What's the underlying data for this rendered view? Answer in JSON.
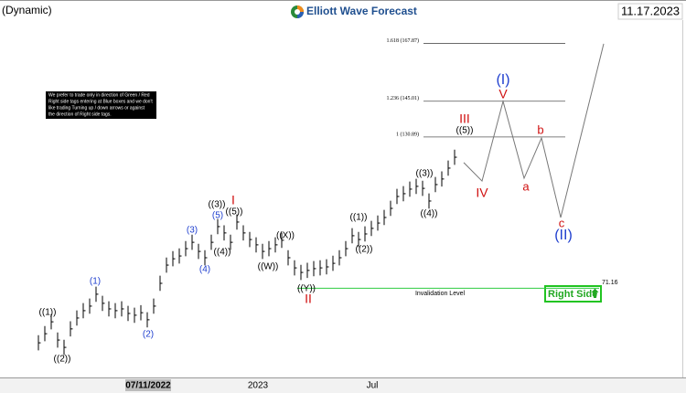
{
  "header": {
    "left": "(Dynamic)",
    "brand": "Elliott Wave Forecast",
    "date": "11.17.2023"
  },
  "note": [
    "We prefer to trade only in direction of Green / Red",
    "Right side tags entering at Blue boxes and we don't",
    "like trading Turning up / down arrows or against",
    "the direction of Right side tags."
  ],
  "right_side": "Right Side",
  "chart_data": {
    "type": "ohlc",
    "ylim": [
      37,
      185
    ],
    "x_labels": [
      "07/11/2022",
      "2023",
      "Jul"
    ],
    "bar_color": "#000000",
    "close": [
      49.6,
      53.2,
      57.9,
      50.7,
      47.8,
      55.1,
      59.4,
      62.3,
      64.1,
      68.8,
      65.2,
      63.0,
      62.3,
      63.0,
      61.2,
      60.5,
      61.5,
      58.7,
      64.1,
      73.1,
      80.3,
      82.8,
      83.9,
      86.8,
      89.3,
      85.7,
      83.2,
      89.3,
      95.5,
      93.0,
      89.3,
      97.3,
      93.0,
      90.4,
      88.3,
      85.7,
      86.8,
      88.3,
      90.1,
      83.2,
      79.2,
      77.4,
      78.2,
      78.9,
      79.2,
      79.6,
      81.0,
      83.2,
      86.8,
      91.9,
      90.4,
      92.6,
      94.8,
      96.9,
      99.1,
      102.7,
      107.4,
      108.5,
      110.3,
      111.4,
      110.6,
      105.6,
      112.1,
      114.3,
      118.6,
      122.9
    ],
    "high": [
      52.6,
      56.2,
      60.9,
      53.7,
      50.8,
      58.1,
      62.4,
      65.3,
      67.1,
      71.8,
      68.2,
      66.0,
      65.3,
      66.0,
      64.2,
      63.5,
      64.5,
      61.7,
      67.1,
      76.1,
      83.3,
      85.8,
      86.9,
      89.8,
      92.3,
      88.7,
      86.2,
      92.3,
      98.5,
      96.0,
      92.3,
      100.3,
      96.0,
      93.4,
      91.3,
      88.7,
      89.8,
      91.3,
      93.1,
      86.2,
      82.2,
      80.4,
      81.2,
      81.9,
      82.2,
      82.6,
      84.0,
      86.2,
      89.8,
      94.9,
      93.4,
      95.6,
      97.8,
      99.9,
      102.1,
      105.7,
      110.4,
      111.5,
      113.3,
      114.4,
      113.6,
      108.6,
      115.1,
      117.3,
      121.6,
      125.9
    ],
    "low": [
      46.6,
      50.2,
      54.9,
      47.7,
      44.8,
      52.1,
      56.4,
      59.3,
      61.1,
      65.8,
      62.2,
      60.0,
      59.3,
      60.0,
      58.2,
      57.5,
      58.5,
      55.7,
      61.1,
      70.1,
      77.3,
      79.8,
      80.9,
      83.8,
      86.3,
      82.7,
      80.2,
      86.3,
      92.5,
      90.0,
      86.3,
      94.3,
      90.0,
      87.4,
      85.3,
      82.7,
      83.8,
      85.3,
      87.1,
      80.2,
      76.2,
      74.4,
      75.2,
      75.9,
      76.2,
      76.6,
      78.0,
      80.2,
      83.8,
      88.9,
      87.4,
      89.6,
      91.8,
      93.9,
      96.1,
      99.7,
      104.4,
      105.5,
      107.3,
      108.4,
      107.6,
      102.6,
      109.1,
      111.3,
      115.6,
      119.9
    ],
    "projection": [
      120.8,
      113.5,
      145.0,
      114.6,
      130.5,
      99.1,
      167.7
    ],
    "fib_levels": [
      {
        "value": 167.87,
        "label": "1.618 (167.87)"
      },
      {
        "value": 145.01,
        "label": "1.236 (145.01)"
      },
      {
        "value": 130.89,
        "label": "1 (130.89)"
      }
    ],
    "invalidation": {
      "value": 71.16,
      "label": "Invalidation Level"
    },
    "wave_labels": [
      {
        "text": "((1))",
        "color": "#000000"
      },
      {
        "text": "((2))",
        "color": "#000000"
      },
      {
        "text": "(1)",
        "color": "#1f3fcf"
      },
      {
        "text": "(2)",
        "color": "#1f3fcf"
      },
      {
        "text": "(3)",
        "color": "#1f3fcf"
      },
      {
        "text": "(4)",
        "color": "#1f3fcf"
      },
      {
        "text": "(5)",
        "color": "#1f3fcf"
      },
      {
        "text": "((3))",
        "color": "#000000"
      },
      {
        "text": "((4))",
        "color": "#000000"
      },
      {
        "text": "((5))",
        "color": "#000000"
      },
      {
        "text": "I",
        "color": "#d01010"
      },
      {
        "text": "((W))",
        "color": "#000000"
      },
      {
        "text": "((X))",
        "color": "#000000"
      },
      {
        "text": "((Y))",
        "color": "#000000"
      },
      {
        "text": "II",
        "color": "#d01010"
      },
      {
        "text": "((1))",
        "color": "#000000"
      },
      {
        "text": "((2))",
        "color": "#000000"
      },
      {
        "text": "((3))",
        "color": "#000000"
      },
      {
        "text": "((4))",
        "color": "#000000"
      },
      {
        "text": "((5))",
        "color": "#000000"
      },
      {
        "text": "III",
        "color": "#d01010"
      },
      {
        "text": "IV",
        "color": "#d01010"
      },
      {
        "text": "V",
        "color": "#d01010"
      },
      {
        "text": "(I)",
        "color": "#1f3fcf"
      },
      {
        "text": "a",
        "color": "#d01010"
      },
      {
        "text": "b",
        "color": "#d01010"
      },
      {
        "text": "c",
        "color": "#d01010"
      },
      {
        "text": "(II)",
        "color": "#1f3fcf"
      }
    ]
  }
}
